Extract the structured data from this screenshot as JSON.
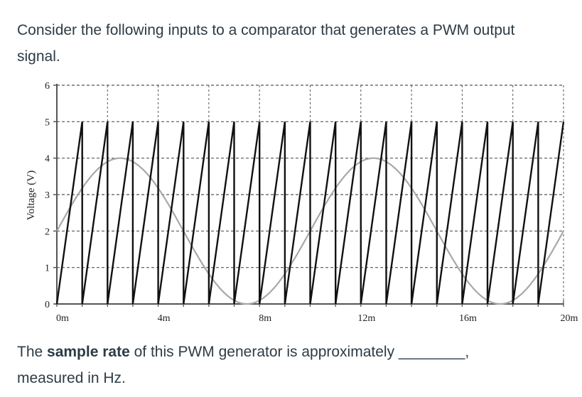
{
  "question": {
    "intro": "Consider the following inputs to a comparator that generates a PWM output signal.",
    "prompt_before": "The ",
    "prompt_bold": "sample rate",
    "prompt_after": " of this PWM generator is approximately ________,",
    "prompt_line2": "measured in Hz."
  },
  "colors": {
    "text": "#2d3b45",
    "sawtooth": "#111111",
    "sine": "#a8a8a8",
    "grid": "#555555",
    "axis": "#555555"
  },
  "chart_data": {
    "type": "line",
    "title": "",
    "xlabel": "",
    "ylabel": "Voltage (V)",
    "xlim": [
      0,
      20
    ],
    "x_unit": "ms",
    "ylim": [
      0,
      6
    ],
    "x_ticks": [
      0,
      4,
      8,
      12,
      16,
      20
    ],
    "x_tick_labels": [
      "0m",
      "4m",
      "8m",
      "12m",
      "16m",
      "20m"
    ],
    "x_minor_tick_step": 1,
    "x_grid_step": 2,
    "y_ticks": [
      0,
      1,
      2,
      3,
      4,
      5,
      6
    ],
    "y_tick_labels": [
      "0",
      "1",
      "2",
      "3",
      "4",
      "5",
      "6"
    ],
    "grid": true,
    "grid_style": "dashed",
    "legend": null,
    "series": [
      {
        "name": "sawtooth carrier",
        "shape": "sawtooth",
        "min": 0,
        "max": 5,
        "period_ms": 1,
        "cycles": 20,
        "description": "Rises linearly 0 to 5 V over 1 ms, drops vertically to 0 V"
      },
      {
        "name": "sine input",
        "shape": "sine",
        "offset": 2,
        "amplitude": 2,
        "period_ms": 10,
        "phase_start_value": 2,
        "description": "Starts at 2 V rising, peaks 4 V at ~2.5 ms and ~12.5 ms, minima 0 V at ~7.5 ms and ~17.5 ms",
        "x": [
          0,
          2.5,
          5,
          7.5,
          10,
          12.5,
          15,
          17.5,
          20
        ],
        "values": [
          2,
          4,
          2,
          0,
          2,
          4,
          2,
          0,
          2
        ]
      }
    ]
  }
}
